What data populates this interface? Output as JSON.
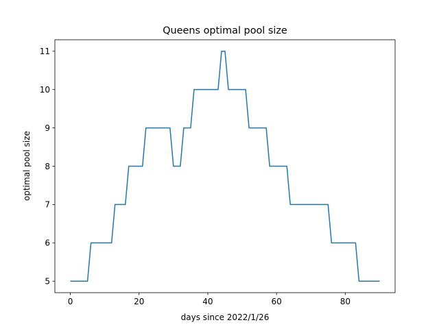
{
  "chart_data": {
    "type": "line",
    "title": "Queens optimal pool size",
    "xlabel": "days since 2022/1/26",
    "ylabel": "optimal pool size",
    "xlim": [
      -4.5,
      94.5
    ],
    "ylim": [
      4.7,
      11.3
    ],
    "xticks": [
      0,
      20,
      40,
      60,
      80
    ],
    "yticks": [
      5,
      6,
      7,
      8,
      9,
      10,
      11
    ],
    "grid": false,
    "legend": "none",
    "series": [
      {
        "color": "#1f77b4",
        "x": [
          0,
          1,
          2,
          3,
          4,
          5,
          6,
          7,
          8,
          9,
          10,
          11,
          12,
          13,
          14,
          15,
          16,
          17,
          18,
          19,
          20,
          21,
          22,
          23,
          24,
          25,
          26,
          27,
          28,
          29,
          30,
          31,
          32,
          33,
          34,
          35,
          36,
          37,
          38,
          39,
          40,
          41,
          42,
          43,
          44,
          45,
          46,
          47,
          48,
          49,
          50,
          51,
          52,
          53,
          54,
          55,
          56,
          57,
          58,
          59,
          60,
          61,
          62,
          63,
          64,
          65,
          66,
          67,
          68,
          69,
          70,
          71,
          72,
          73,
          74,
          75,
          76,
          77,
          78,
          79,
          80,
          81,
          82,
          83,
          84,
          85,
          86,
          87,
          88,
          89,
          90
        ],
        "y": [
          5,
          5,
          5,
          5,
          5,
          5,
          6,
          6,
          6,
          6,
          6,
          6,
          6,
          7,
          7,
          7,
          7,
          8,
          8,
          8,
          8,
          8,
          9,
          9,
          9,
          9,
          9,
          9,
          9,
          9,
          8,
          8,
          8,
          9,
          9,
          9,
          10,
          10,
          10,
          10,
          10,
          10,
          10,
          10,
          11,
          11,
          10,
          10,
          10,
          10,
          10,
          10,
          9,
          9,
          9,
          9,
          9,
          9,
          8,
          8,
          8,
          8,
          8,
          8,
          7,
          7,
          7,
          7,
          7,
          7,
          7,
          7,
          7,
          7,
          7,
          7,
          6,
          6,
          6,
          6,
          6,
          6,
          6,
          6,
          5,
          5,
          5,
          5,
          5,
          5,
          5
        ]
      }
    ]
  }
}
